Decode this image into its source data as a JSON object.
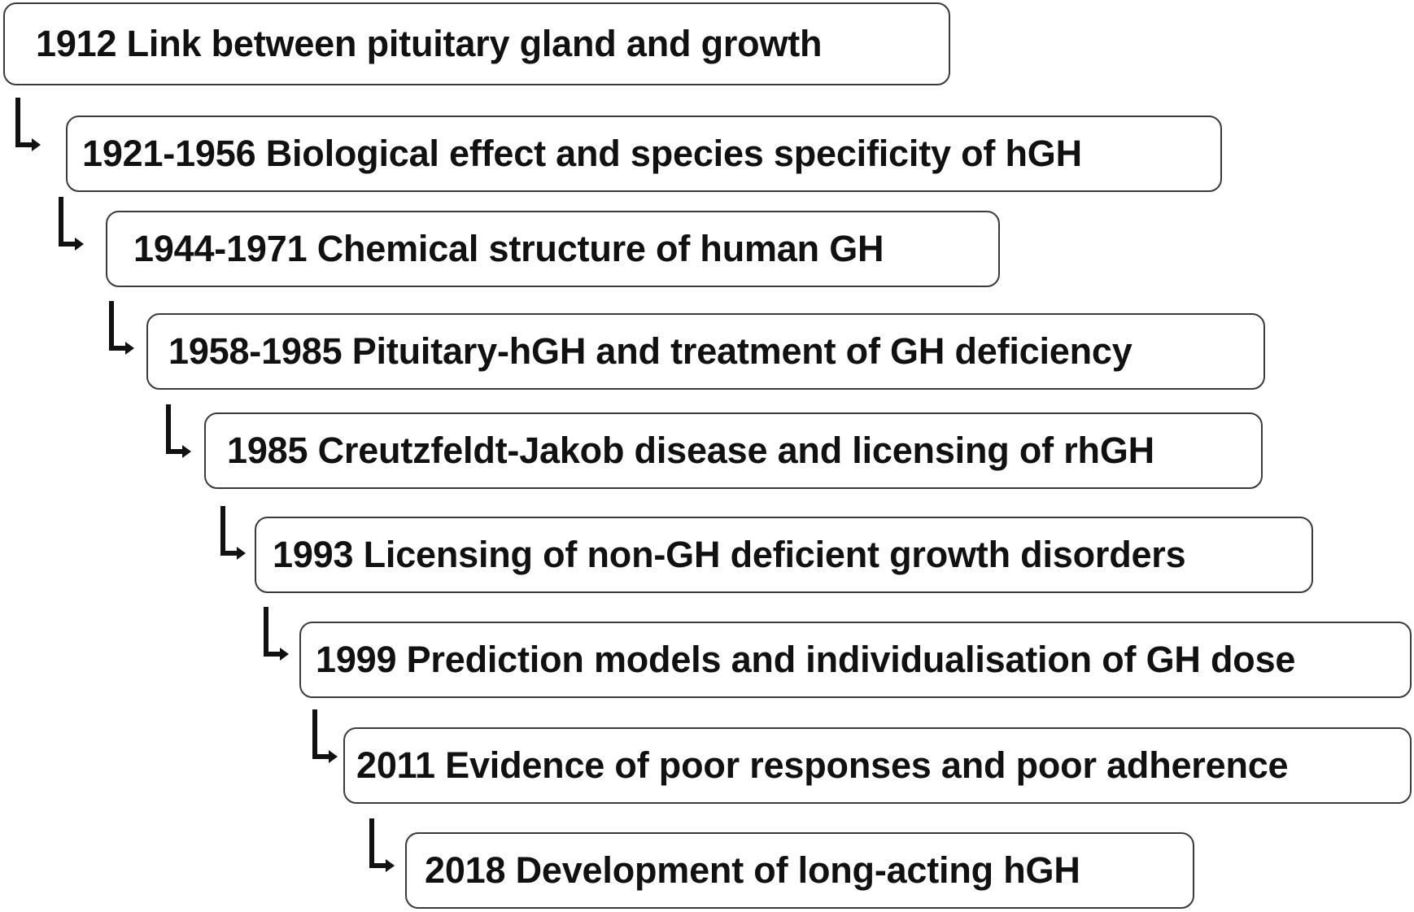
{
  "timeline": {
    "events": [
      {
        "text": "1912 Link between pituitary gland and growth"
      },
      {
        "text": "1921-1956 Biological effect and species specificity of hGH"
      },
      {
        "text": "1944-1971 Chemical structure of human GH"
      },
      {
        "text": "1958-1985 Pituitary-hGH and treatment of GH deficiency"
      },
      {
        "text": "1985 Creutzfeldt-Jakob disease and licensing of rhGH"
      },
      {
        "text": "1993 Licensing of non-GH deficient growth disorders"
      },
      {
        "text": "1999 Prediction models and individualisation of GH dose"
      },
      {
        "text": "2011 Evidence of poor responses and poor adherence"
      },
      {
        "text": "2018 Development of long-acting hGH"
      }
    ],
    "connector_icon": "elbow-arrow-icon",
    "colors": {
      "border": "#3a3a3a",
      "text": "#111111",
      "arrow": "#111111",
      "background": "#ffffff"
    }
  }
}
